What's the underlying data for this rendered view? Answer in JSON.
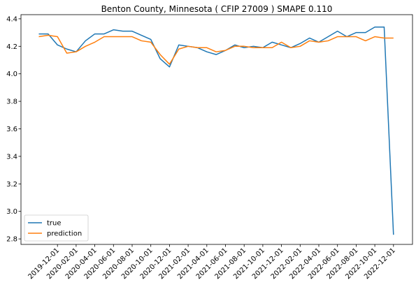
{
  "chart_data": {
    "type": "line",
    "title": "Benton County, Minnesota ( CFIP 27009 ) SMAPE 0.110",
    "xlabel": "",
    "ylabel": "",
    "x": [
      "2019-10-01",
      "2019-11-01",
      "2019-12-01",
      "2020-01-01",
      "2020-02-01",
      "2020-03-01",
      "2020-04-01",
      "2020-05-01",
      "2020-06-01",
      "2020-07-01",
      "2020-08-01",
      "2020-09-01",
      "2020-10-01",
      "2020-11-01",
      "2020-12-01",
      "2021-01-01",
      "2021-02-01",
      "2021-03-01",
      "2021-04-01",
      "2021-05-01",
      "2021-06-01",
      "2021-07-01",
      "2021-08-01",
      "2021-09-01",
      "2021-10-01",
      "2021-11-01",
      "2021-12-01",
      "2022-01-01",
      "2022-02-01",
      "2022-03-01",
      "2022-04-01",
      "2022-05-01",
      "2022-06-01",
      "2022-07-01",
      "2022-08-01",
      "2022-09-01",
      "2022-10-01",
      "2022-11-01",
      "2022-12-01"
    ],
    "x_tick_labels": [
      "2019-12-01",
      "2020-02-01",
      "2020-04-01",
      "2020-06-01",
      "2020-08-01",
      "2020-10-01",
      "2020-12-01",
      "2021-02-01",
      "2021-04-01",
      "2021-06-01",
      "2021-08-01",
      "2021-10-01",
      "2021-12-01",
      "2022-02-01",
      "2022-04-01",
      "2022-06-01",
      "2022-08-01",
      "2022-10-01",
      "2022-12-01"
    ],
    "y_ticks": [
      2.8,
      3.0,
      3.2,
      3.4,
      3.6,
      3.8,
      4.0,
      4.2,
      4.4
    ],
    "y_tick_labels": [
      "2.8",
      "3.0",
      "3.2",
      "3.4",
      "3.6",
      "3.8",
      "4.0",
      "4.2",
      "4.4"
    ],
    "ylim": [
      2.76,
      4.43
    ],
    "grid": false,
    "legend_position": "lower-left",
    "series": [
      {
        "name": "true",
        "color": "#1f77b4",
        "values": [
          4.29,
          4.29,
          4.21,
          4.18,
          4.16,
          4.24,
          4.29,
          4.29,
          4.32,
          4.31,
          4.31,
          4.28,
          4.25,
          4.11,
          4.05,
          4.21,
          4.2,
          4.19,
          4.16,
          4.14,
          4.17,
          4.21,
          4.19,
          4.2,
          4.19,
          4.23,
          4.21,
          4.19,
          4.22,
          4.26,
          4.23,
          4.27,
          4.31,
          4.27,
          4.3,
          4.3,
          4.34,
          4.34,
          2.83
        ]
      },
      {
        "name": "prediction",
        "color": "#ff7f0e",
        "values": [
          4.27,
          4.28,
          4.27,
          4.15,
          4.16,
          4.2,
          4.23,
          4.27,
          4.27,
          4.27,
          4.27,
          4.24,
          4.23,
          4.14,
          4.07,
          4.18,
          4.2,
          4.19,
          4.19,
          4.16,
          4.17,
          4.2,
          4.2,
          4.19,
          4.19,
          4.19,
          4.23,
          4.19,
          4.2,
          4.24,
          4.23,
          4.24,
          4.27,
          4.27,
          4.27,
          4.24,
          4.27,
          4.26,
          4.26
        ]
      }
    ]
  }
}
